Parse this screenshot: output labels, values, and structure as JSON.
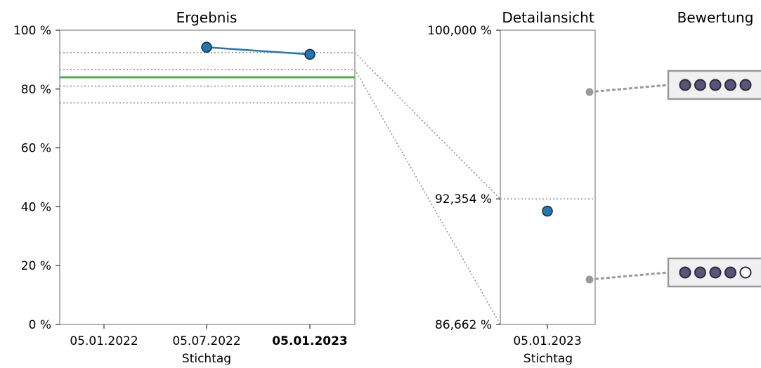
{
  "colors": {
    "series": "#1f77b4",
    "threshold_line": "#4daf4a",
    "reference_lines": "#888888",
    "frame": "#9a9a9a",
    "rating_dot": "#5a5478",
    "rating_dot_stroke": "#2b2b3a",
    "rating_box_fill": "#f0f0f0",
    "rating_connector": "#999999"
  },
  "chart_data": [
    {
      "type": "line",
      "title": "Ergebnis",
      "xlabel": "Stichtag",
      "ylabel": "",
      "categories": [
        "05.01.2022",
        "05.07.2022",
        "05.01.2023"
      ],
      "highlight_category": "05.01.2023",
      "ylim": [
        0,
        100
      ],
      "y_ticks": [
        0,
        20,
        40,
        60,
        80,
        100
      ],
      "y_tick_labels": [
        "0 %",
        "20 %",
        "40 %",
        "60 %",
        "80 %",
        "100 %"
      ],
      "series": [
        {
          "x": [
            "05.07.2022",
            "05.01.2023"
          ],
          "values": [
            94.2,
            91.8
          ]
        }
      ],
      "threshold": 84.0,
      "reference_lines": [
        92.354,
        86.662,
        81.0,
        75.3
      ],
      "grid": false
    },
    {
      "type": "scatter",
      "title": "Detailansicht",
      "xlabel": "Stichtag",
      "categories": [
        "05.01.2023"
      ],
      "ylim": [
        86.662,
        100.0
      ],
      "y_ticks": [
        86.662,
        92.354,
        100.0
      ],
      "y_tick_labels": [
        "86,662 %",
        "92,354 %",
        "100,000 %"
      ],
      "series": [
        {
          "x": [
            "05.01.2023"
          ],
          "values": [
            91.8
          ]
        }
      ],
      "reference_lines": [
        92.354
      ]
    },
    {
      "type": "table",
      "title": "Bewertung",
      "ratings": [
        {
          "filled": 5,
          "total": 5,
          "anchor_value": 97.2
        },
        {
          "filled": 4,
          "total": 5,
          "anchor_value": 88.7
        }
      ]
    }
  ]
}
